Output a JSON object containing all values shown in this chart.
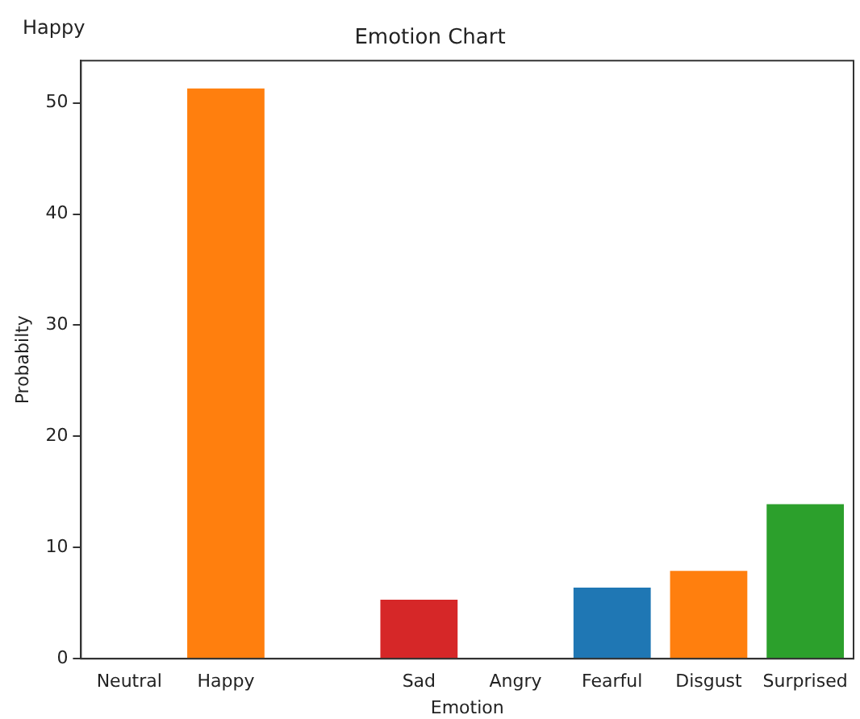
{
  "chart_data": {
    "type": "bar",
    "title": "Emotion Chart",
    "xlabel": "Emotion",
    "ylabel": "Probabilty",
    "annotations": [
      "Happy"
    ],
    "categories": [
      "Neutral",
      "Happy",
      null,
      "Sad",
      "Angry",
      "Fearful",
      "Disgust",
      "Surprised"
    ],
    "values": [
      0,
      51.3,
      null,
      5.3,
      0,
      6.4,
      7.9,
      13.9
    ],
    "colors": [
      "#1f77b4",
      "#ff7f0e",
      "#2ca02c",
      "#d62728",
      "#9467bd",
      "#1f77b4",
      "#ff7f0e",
      "#2ca02c"
    ],
    "ylim": [
      0,
      53.8
    ],
    "yticks": [
      0,
      10,
      20,
      30,
      40,
      50
    ],
    "grid": false,
    "legend": false
  }
}
